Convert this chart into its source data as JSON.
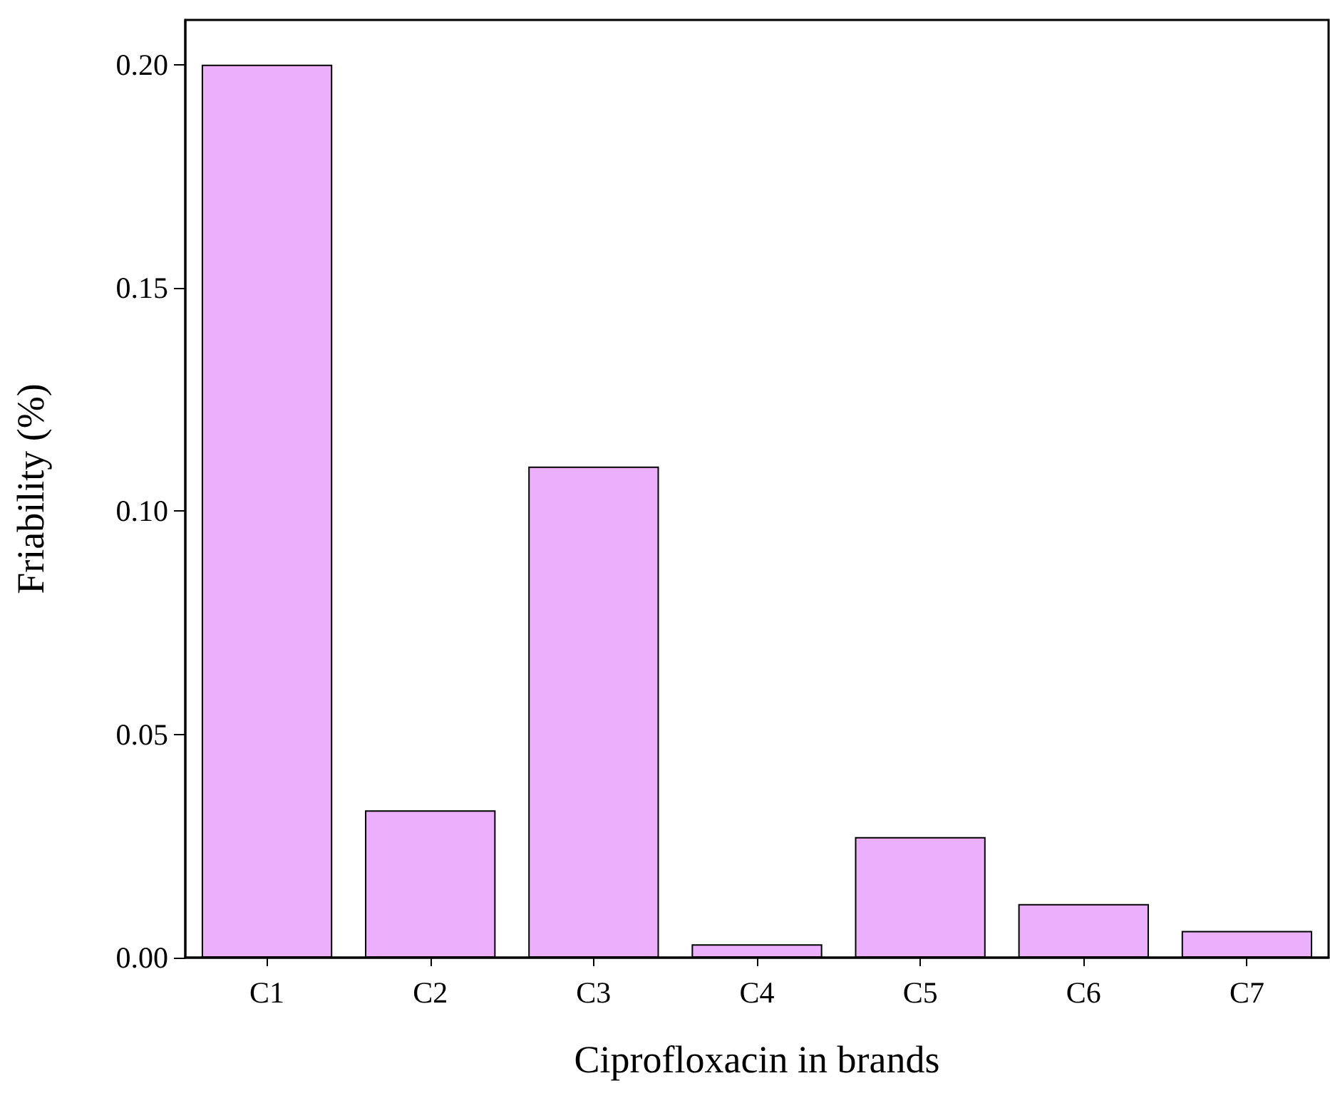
{
  "chart_data": {
    "type": "bar",
    "xlabel": "Ciprofloxacin in brands",
    "ylabel": "Friability (%)",
    "categories": [
      "C1",
      "C2",
      "C3",
      "C4",
      "C5",
      "C6",
      "C7"
    ],
    "values": [
      0.2,
      0.033,
      0.11,
      0.003,
      0.027,
      0.012,
      0.006
    ],
    "color": "#ebaffc",
    "ylim": [
      0,
      0.21
    ],
    "yticks": [
      {
        "value": 0,
        "label": "0.00"
      },
      {
        "value": 0.05,
        "label": "0.05"
      },
      {
        "value": 0.1,
        "label": "0.10"
      },
      {
        "value": 0.15,
        "label": "0.15"
      },
      {
        "value": 0.2,
        "label": "0.20"
      }
    ],
    "grid": false
  }
}
